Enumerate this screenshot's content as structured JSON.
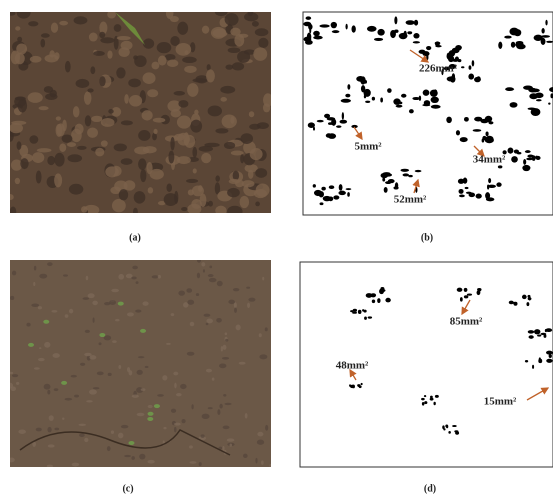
{
  "panels": [
    {
      "label": "(a)"
    },
    {
      "label": "(b)",
      "annotations": [
        "226mm²",
        "5mm²",
        "34mm²",
        "52mm²"
      ]
    },
    {
      "label": "(c)"
    },
    {
      "label": "(d)",
      "annotations": [
        "85mm²",
        "48mm²",
        "15mm²"
      ]
    }
  ]
}
